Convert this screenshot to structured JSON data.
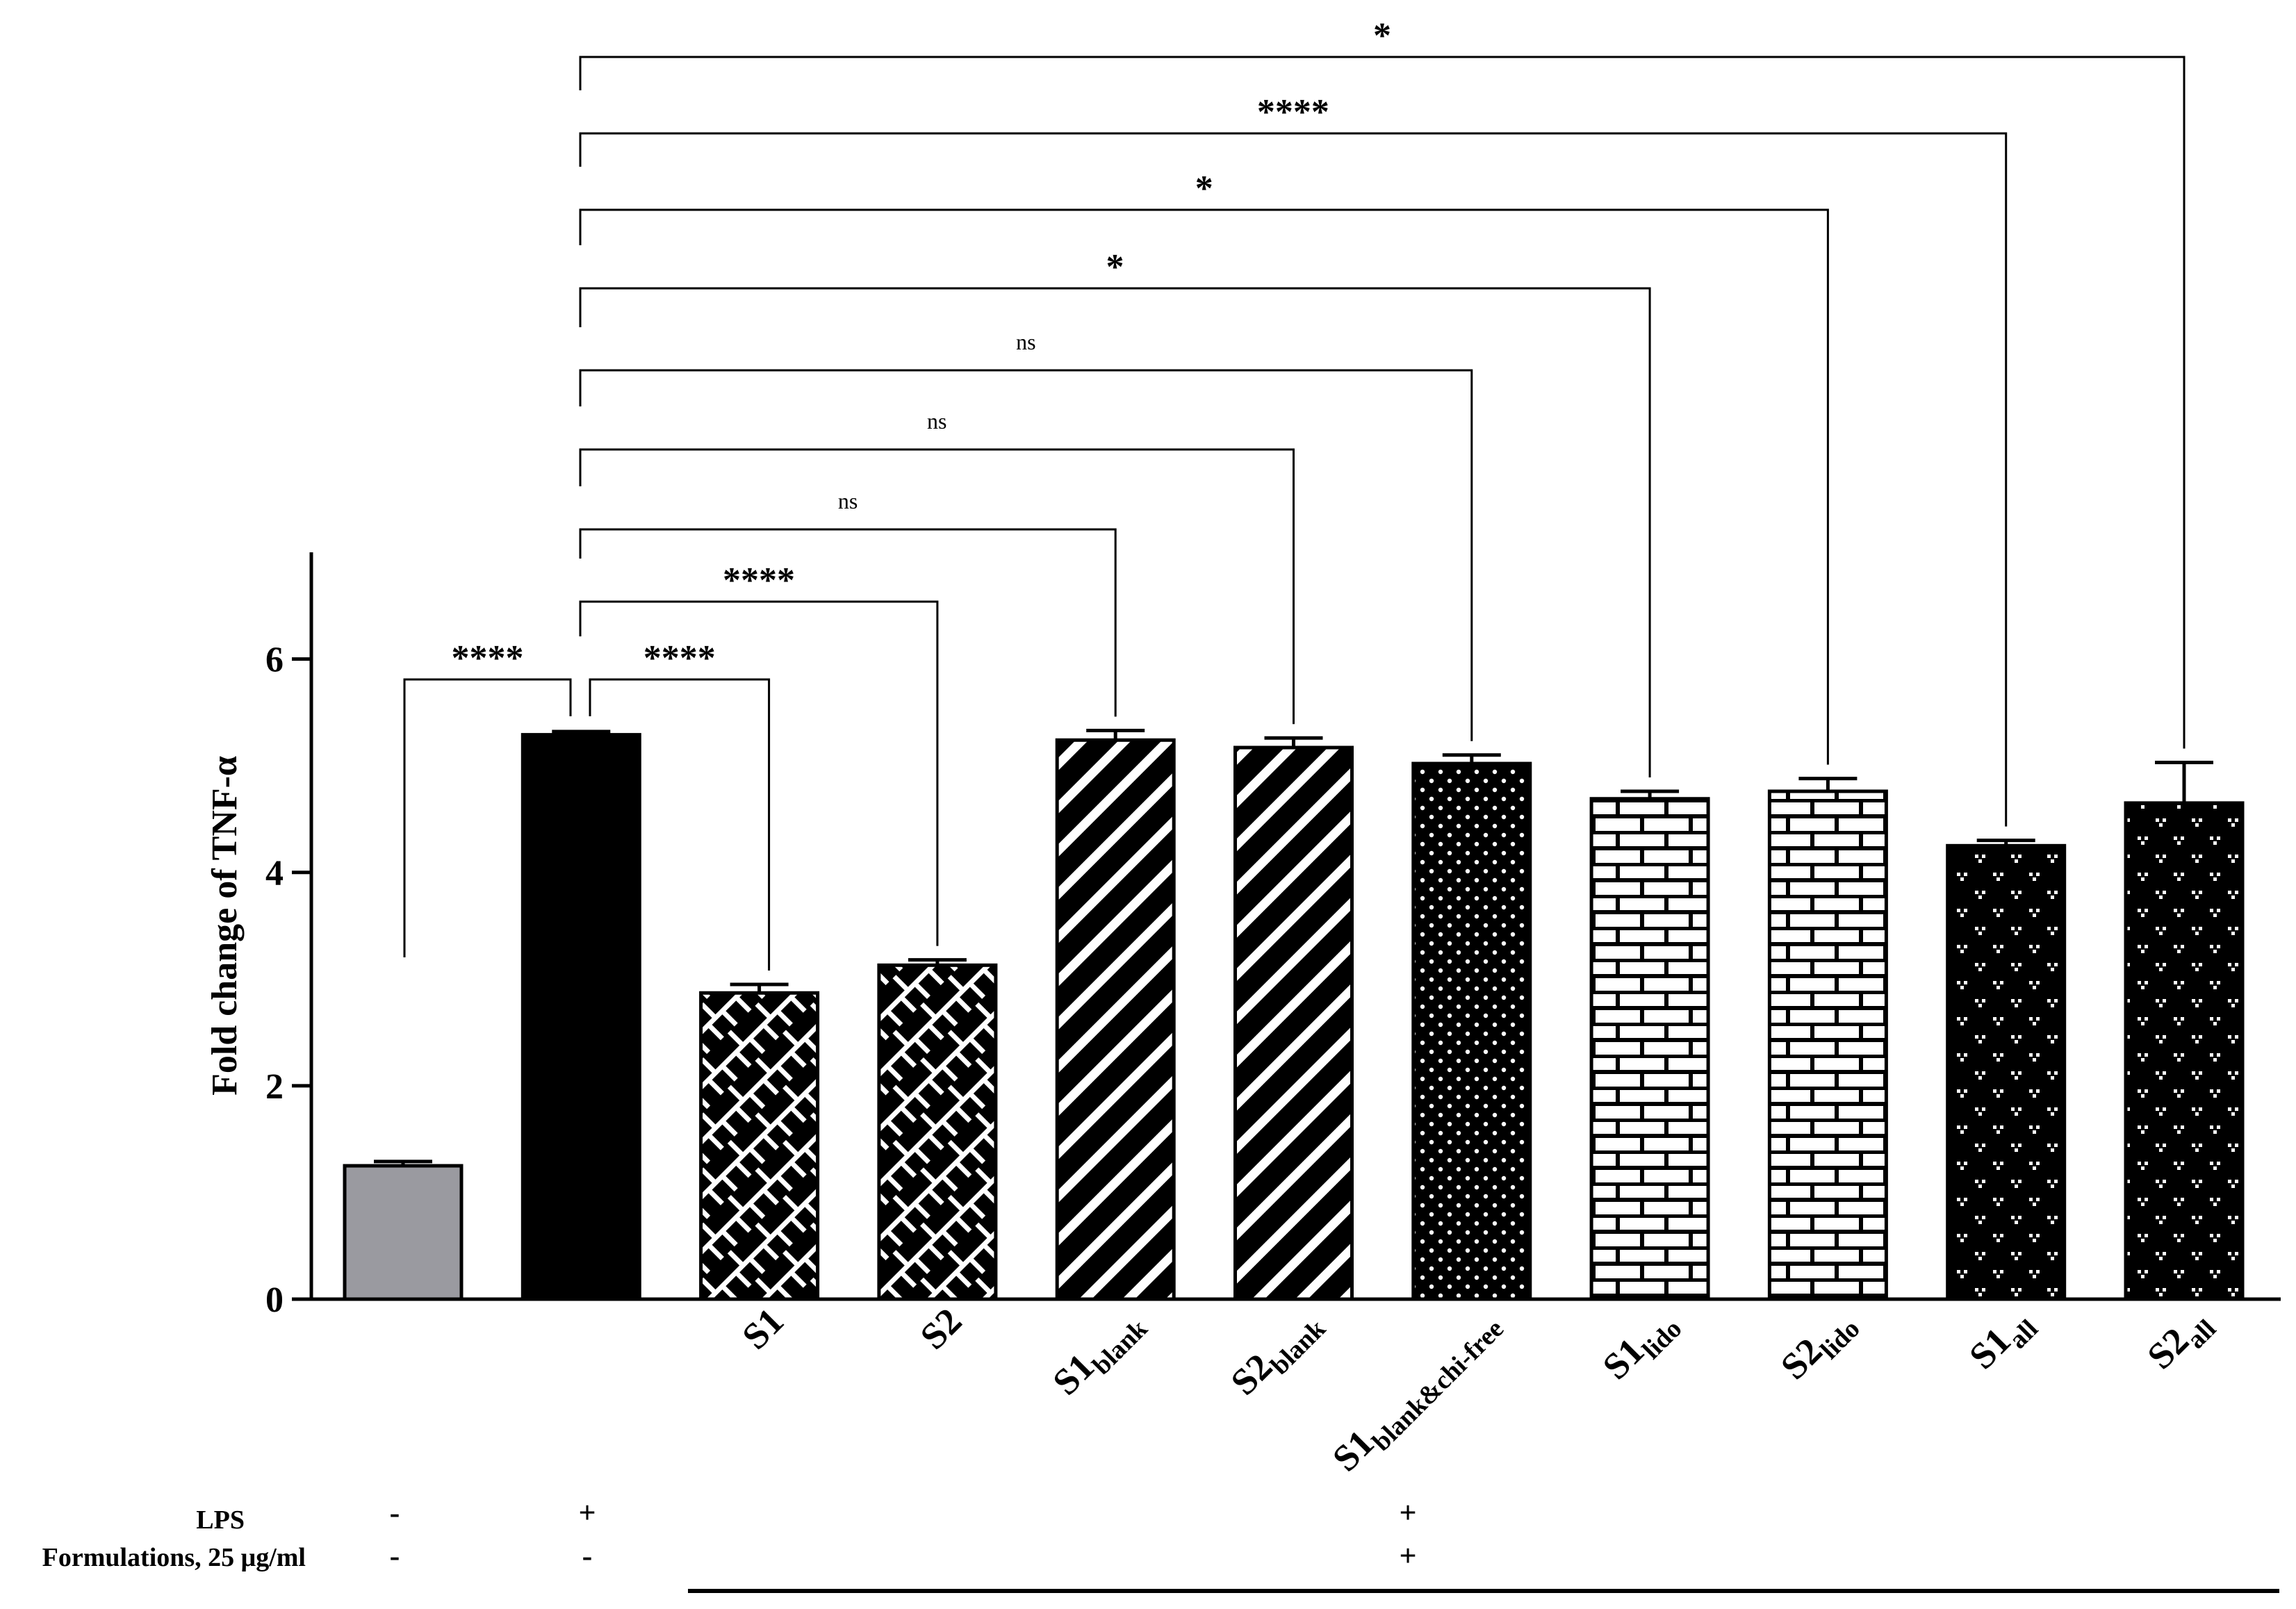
{
  "chart_data": {
    "type": "bar",
    "ylabel": "Fold change of TNF-α",
    "ylim": [
      0,
      7
    ],
    "yticks": [
      0,
      2,
      4,
      6
    ],
    "bars": [
      {
        "label": "",
        "sub": "",
        "value": 1.25,
        "error": 0.04,
        "color": "#9a9aa0",
        "pattern": "solid"
      },
      {
        "label": "",
        "sub": "",
        "value": 5.29,
        "error": 0.03,
        "color": "#000000",
        "pattern": "solid"
      },
      {
        "label": "S1",
        "sub": "",
        "value": 2.87,
        "error": 0.08,
        "color": "#f0444f",
        "pattern": "basket"
      },
      {
        "label": "S2",
        "sub": "",
        "value": 3.13,
        "error": 0.05,
        "color": "#0d5cec",
        "pattern": "basket"
      },
      {
        "label": "S1",
        "sub": "blank",
        "value": 5.24,
        "error": 0.09,
        "color": "#f0444f",
        "pattern": "diagonal"
      },
      {
        "label": "S2",
        "sub": "blank",
        "value": 5.17,
        "error": 0.09,
        "color": "#0d5cec",
        "pattern": "diagonal"
      },
      {
        "label": "S1",
        "sub": "blank&chi-free",
        "value": 5.02,
        "error": 0.08,
        "color": "#f0444f",
        "pattern": "dots"
      },
      {
        "label": "S1",
        "sub": "lido",
        "value": 4.69,
        "error": 0.07,
        "color": "#f0444f",
        "pattern": "brick"
      },
      {
        "label": "S2",
        "sub": "lido",
        "value": 4.76,
        "error": 0.12,
        "color": "#0d5cec",
        "pattern": "brick"
      },
      {
        "label": "S1",
        "sub": "all",
        "value": 4.25,
        "error": 0.05,
        "color": "#f0444f",
        "pattern": "sprinkle"
      },
      {
        "label": "S2",
        "sub": "all",
        "value": 4.65,
        "error": 0.38,
        "color": "#0d5cec",
        "pattern": "sprinkle"
      }
    ],
    "comparisons": [
      {
        "from": 1,
        "to": 0,
        "sig": "****"
      },
      {
        "from": 1,
        "to": 2,
        "sig": "****"
      },
      {
        "from": 1,
        "to": 3,
        "sig": "****"
      },
      {
        "from": 1,
        "to": 4,
        "sig": "ns"
      },
      {
        "from": 1,
        "to": 5,
        "sig": "ns"
      },
      {
        "from": 1,
        "to": 6,
        "sig": "ns"
      },
      {
        "from": 1,
        "to": 7,
        "sig": "*"
      },
      {
        "from": 1,
        "to": 8,
        "sig": "*"
      },
      {
        "from": 1,
        "to": 9,
        "sig": "****"
      },
      {
        "from": 1,
        "to": 10,
        "sig": "*"
      }
    ],
    "conditions": [
      {
        "label": "LPS",
        "values": [
          "-",
          "+",
          "+"
        ]
      },
      {
        "label": "Formulations, 25 μg/ml",
        "values": [
          "-",
          "-",
          "+"
        ]
      }
    ]
  }
}
